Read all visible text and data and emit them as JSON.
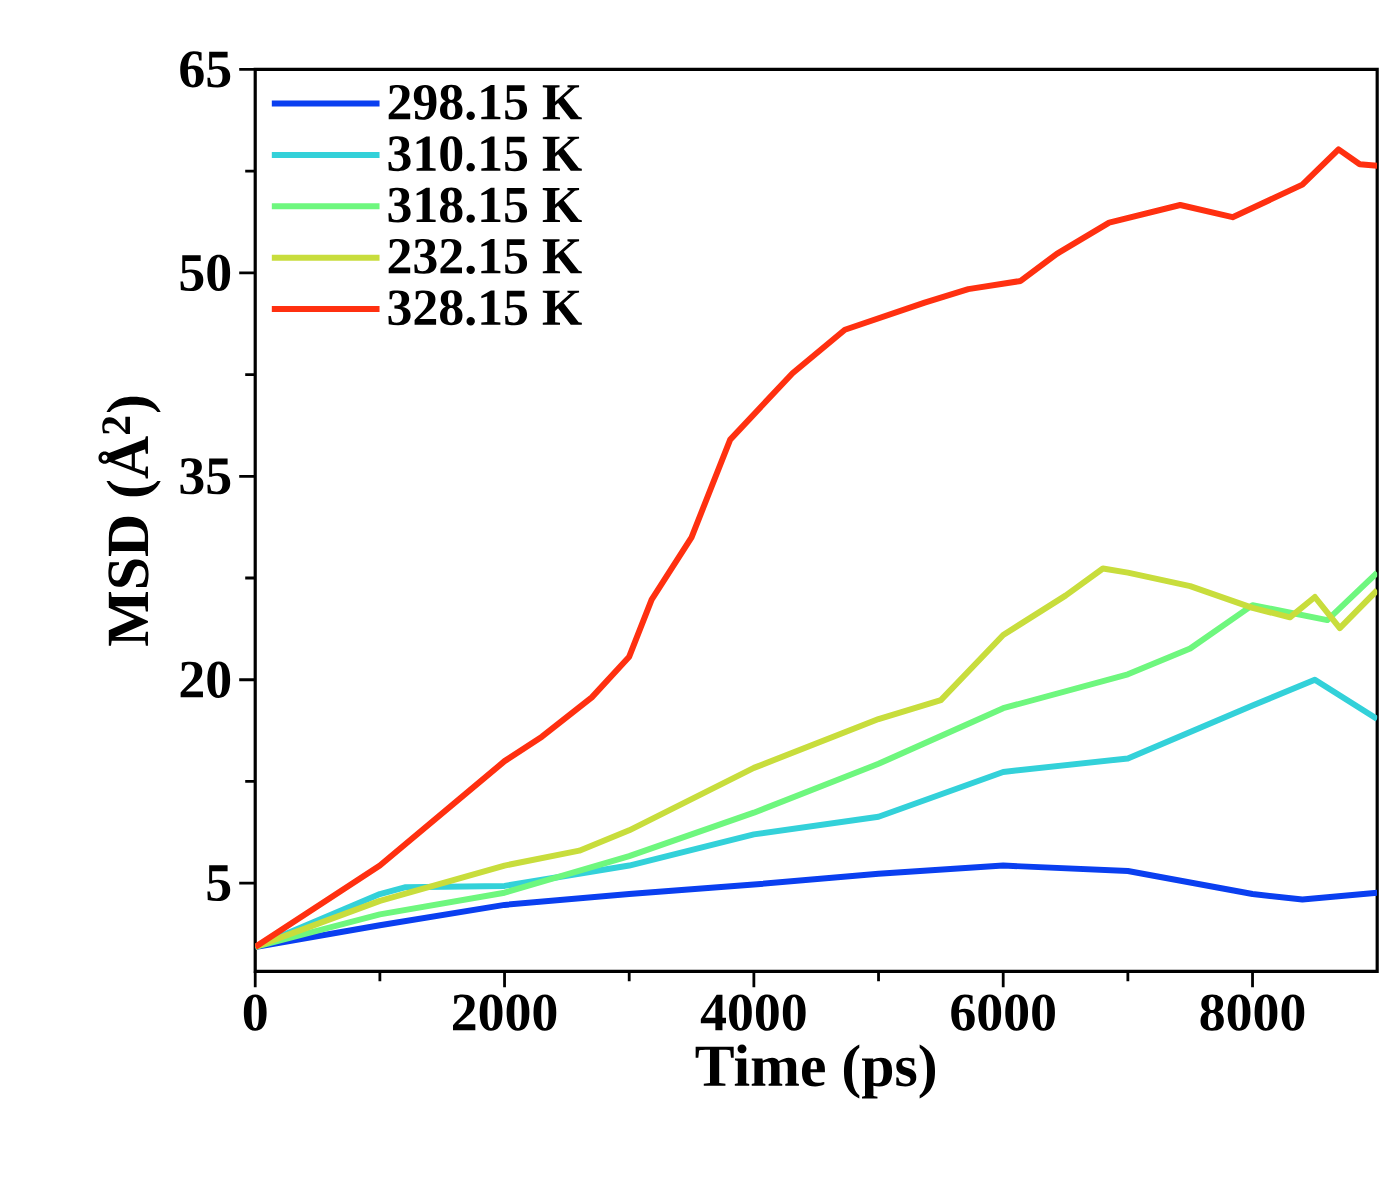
{
  "chart_data": {
    "type": "line",
    "xlabel": "Time (ps)",
    "ylabel": "MSD (Å$^{2}$)",
    "xlim": [
      0,
      9000
    ],
    "ylim": [
      -1.5,
      65
    ],
    "xticks": [
      0,
      2000,
      4000,
      6000,
      8000
    ],
    "yticks": [
      5,
      20,
      35,
      50,
      65
    ],
    "grid": false,
    "legend": "top left",
    "marker": "none",
    "line_style": "solid",
    "series": [
      {
        "name": "298.15 K",
        "color": "#0a3ff0",
        "x": [
          0,
          1000,
          2000,
          3000,
          4000,
          5000,
          6000,
          7000,
          8000,
          8400,
          9000
        ],
        "values": [
          0.3,
          1.9,
          3.4,
          4.2,
          4.9,
          5.7,
          6.3,
          5.9,
          4.2,
          3.8,
          4.3
        ]
      },
      {
        "name": "310.15 K",
        "color": "#33d1d9",
        "x": [
          0,
          1000,
          1200,
          2000,
          3000,
          4000,
          5000,
          6000,
          7000,
          8000,
          8500,
          9000
        ],
        "values": [
          0.3,
          4.2,
          4.7,
          4.8,
          6.3,
          8.6,
          9.9,
          13.2,
          14.2,
          18.1,
          20,
          17.1
        ]
      },
      {
        "name": "318.15 K",
        "color": "#6ef77e",
        "x": [
          0,
          1000,
          2000,
          3000,
          4000,
          5000,
          6000,
          7000,
          7500,
          8000,
          8600,
          9000
        ],
        "values": [
          0.3,
          2.7,
          4.3,
          7,
          10.2,
          13.8,
          17.9,
          20.4,
          22.3,
          25.5,
          24.4,
          27.9
        ]
      },
      {
        "name": "232.15 K",
        "color": "#c8dd3c",
        "x": [
          0,
          1000,
          2000,
          2600,
          3000,
          4000,
          5000,
          5500,
          6000,
          6500,
          6800,
          7000,
          7500,
          8000,
          8300,
          8500,
          8700,
          9000
        ],
        "values": [
          0.3,
          3.7,
          6.3,
          7.4,
          8.9,
          13.5,
          17.1,
          18.5,
          23.3,
          26.2,
          28.2,
          27.9,
          26.9,
          25.3,
          24.6,
          26.1,
          23.8,
          26.6
        ]
      },
      {
        "name": "328.15 K",
        "color": "#ff3010",
        "x": [
          0,
          1000,
          2000,
          2300,
          2700,
          3000,
          3180,
          3500,
          3810,
          4310,
          4730,
          5370,
          5720,
          6140,
          6430,
          6850,
          7420,
          7840,
          8400,
          8690,
          8860,
          9000
        ],
        "values": [
          0.3,
          6.3,
          14,
          15.8,
          18.7,
          21.7,
          25.9,
          30.5,
          37.7,
          42.6,
          45.8,
          47.8,
          48.8,
          49.4,
          51.4,
          53.7,
          55,
          54.1,
          56.5,
          59.1,
          58,
          57.9
        ]
      }
    ]
  }
}
